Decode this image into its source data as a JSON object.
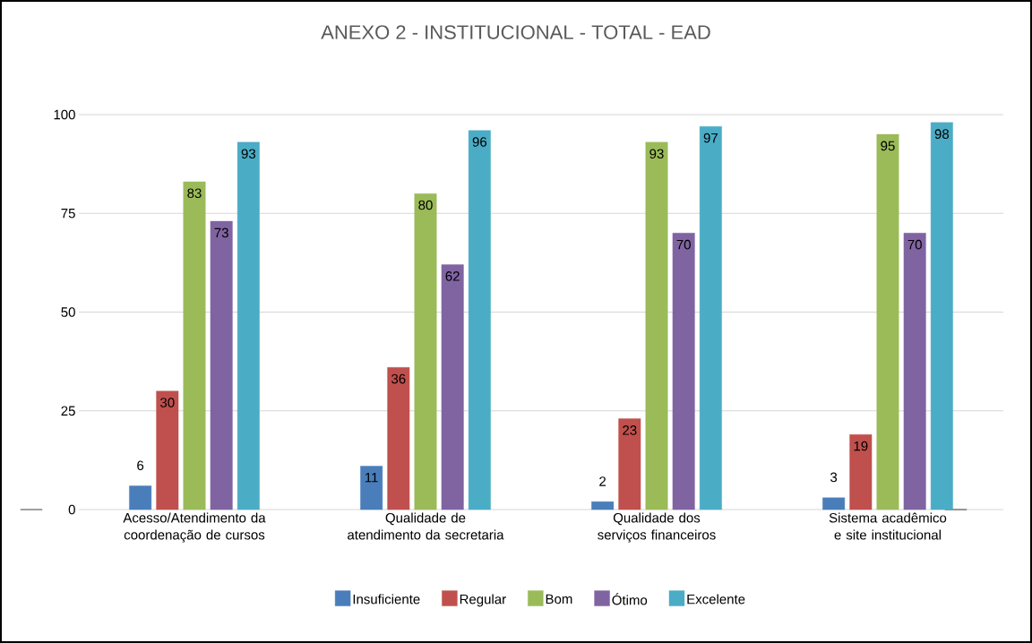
{
  "chart_data": {
    "type": "bar",
    "title": "ANEXO 2 - INSTITUCIONAL - TOTAL - EAD",
    "categories": [
      "Acesso/Atendimento da coordenação de cursos",
      "Qualidade de atendimento da secretaria",
      "Qualidade dos serviços financeiros",
      "Sistema acadêmico e site institucional"
    ],
    "series": [
      {
        "name": "Insuficiente",
        "color": "#4a7ebb",
        "values": [
          6,
          11,
          2,
          3
        ]
      },
      {
        "name": "Regular",
        "color": "#c0504d",
        "values": [
          30,
          36,
          23,
          19
        ]
      },
      {
        "name": "Bom",
        "color": "#9bbb59",
        "values": [
          83,
          80,
          93,
          95
        ]
      },
      {
        "name": "Ótimo",
        "color": "#8064a2",
        "values": [
          73,
          62,
          70,
          70
        ]
      },
      {
        "name": "Excelente",
        "color": "#4bacc6",
        "values": [
          93,
          96,
          97,
          98
        ]
      }
    ],
    "ylim": [
      0,
      100
    ],
    "yticks": [
      0,
      25,
      50,
      75,
      100
    ],
    "grid": "y",
    "legend": "bottom",
    "data_labels": true
  }
}
